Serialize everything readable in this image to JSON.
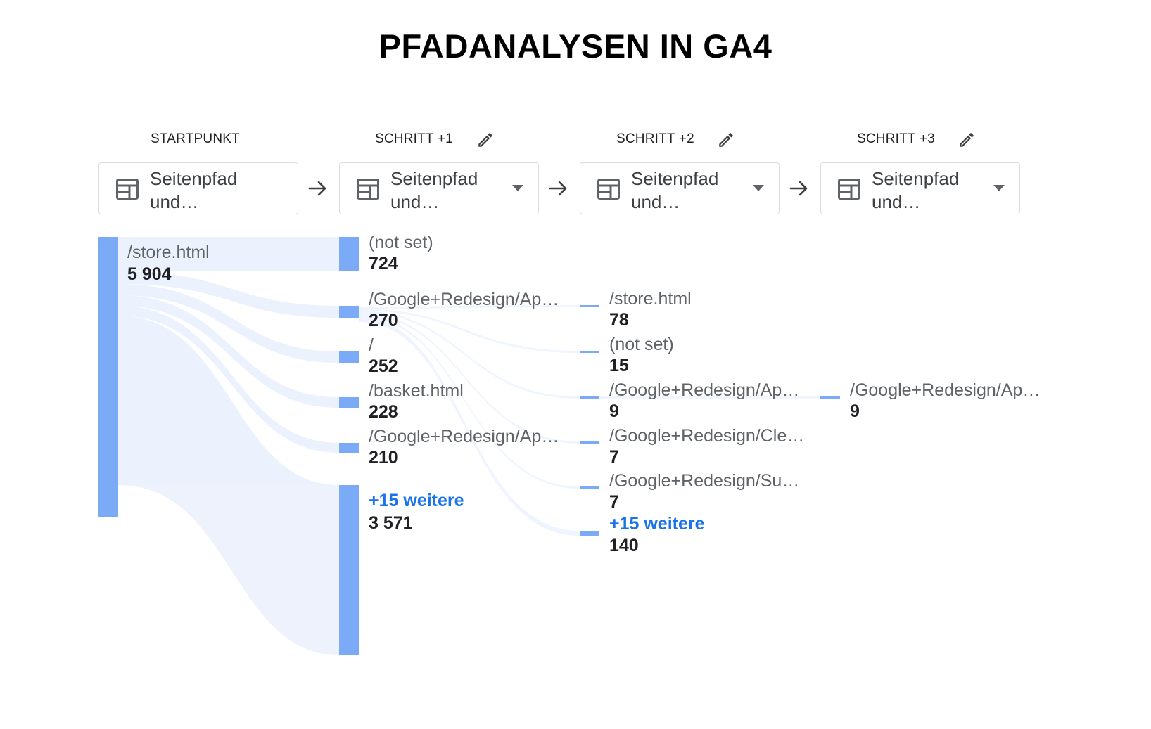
{
  "title": "PFADANALYSEN IN GA4",
  "steps": [
    {
      "header": "STARTPUNKT",
      "dimension": "Seitenpfad und…",
      "editable": false
    },
    {
      "header": "SCHRITT +1",
      "dimension": "Seitenpfad und…",
      "editable": true
    },
    {
      "header": "SCHRITT +2",
      "dimension": "Seitenpfad und…",
      "editable": true
    },
    {
      "header": "SCHRITT +3",
      "dimension": "Seitenpfad und…",
      "editable": true
    }
  ],
  "icons": {
    "edit": "pencil-icon",
    "dimension": "table-icon",
    "dropdown": "dropdown-icon",
    "arrow": "arrow-right-icon"
  },
  "colors": {
    "node": "#7baaf7",
    "flow": "#e8f0fe",
    "link": "#1a73e8"
  },
  "nodes": {
    "start": [
      {
        "label": "/store.html",
        "value": "5 904"
      }
    ],
    "step1": [
      {
        "label": "(not set)",
        "value": "724"
      },
      {
        "label": "/Google+Redesign/Ap…",
        "value": "270"
      },
      {
        "label": "/",
        "value": "252"
      },
      {
        "label": "/basket.html",
        "value": "228"
      },
      {
        "label": "/Google+Redesign/Ap…",
        "value": "210"
      },
      {
        "label": "+15 weitere",
        "value": "3 571",
        "more": true
      }
    ],
    "step2": [
      {
        "label": "/store.html",
        "value": "78"
      },
      {
        "label": "(not set)",
        "value": "15"
      },
      {
        "label": "/Google+Redesign/Ap…",
        "value": "9"
      },
      {
        "label": "/Google+Redesign/Cle…",
        "value": "7"
      },
      {
        "label": "/Google+Redesign/Su…",
        "value": "7"
      },
      {
        "label": "+15 weitere",
        "value": "140",
        "more": true
      }
    ],
    "step3": [
      {
        "label": "/Google+Redesign/Ap…",
        "value": "9"
      }
    ]
  }
}
